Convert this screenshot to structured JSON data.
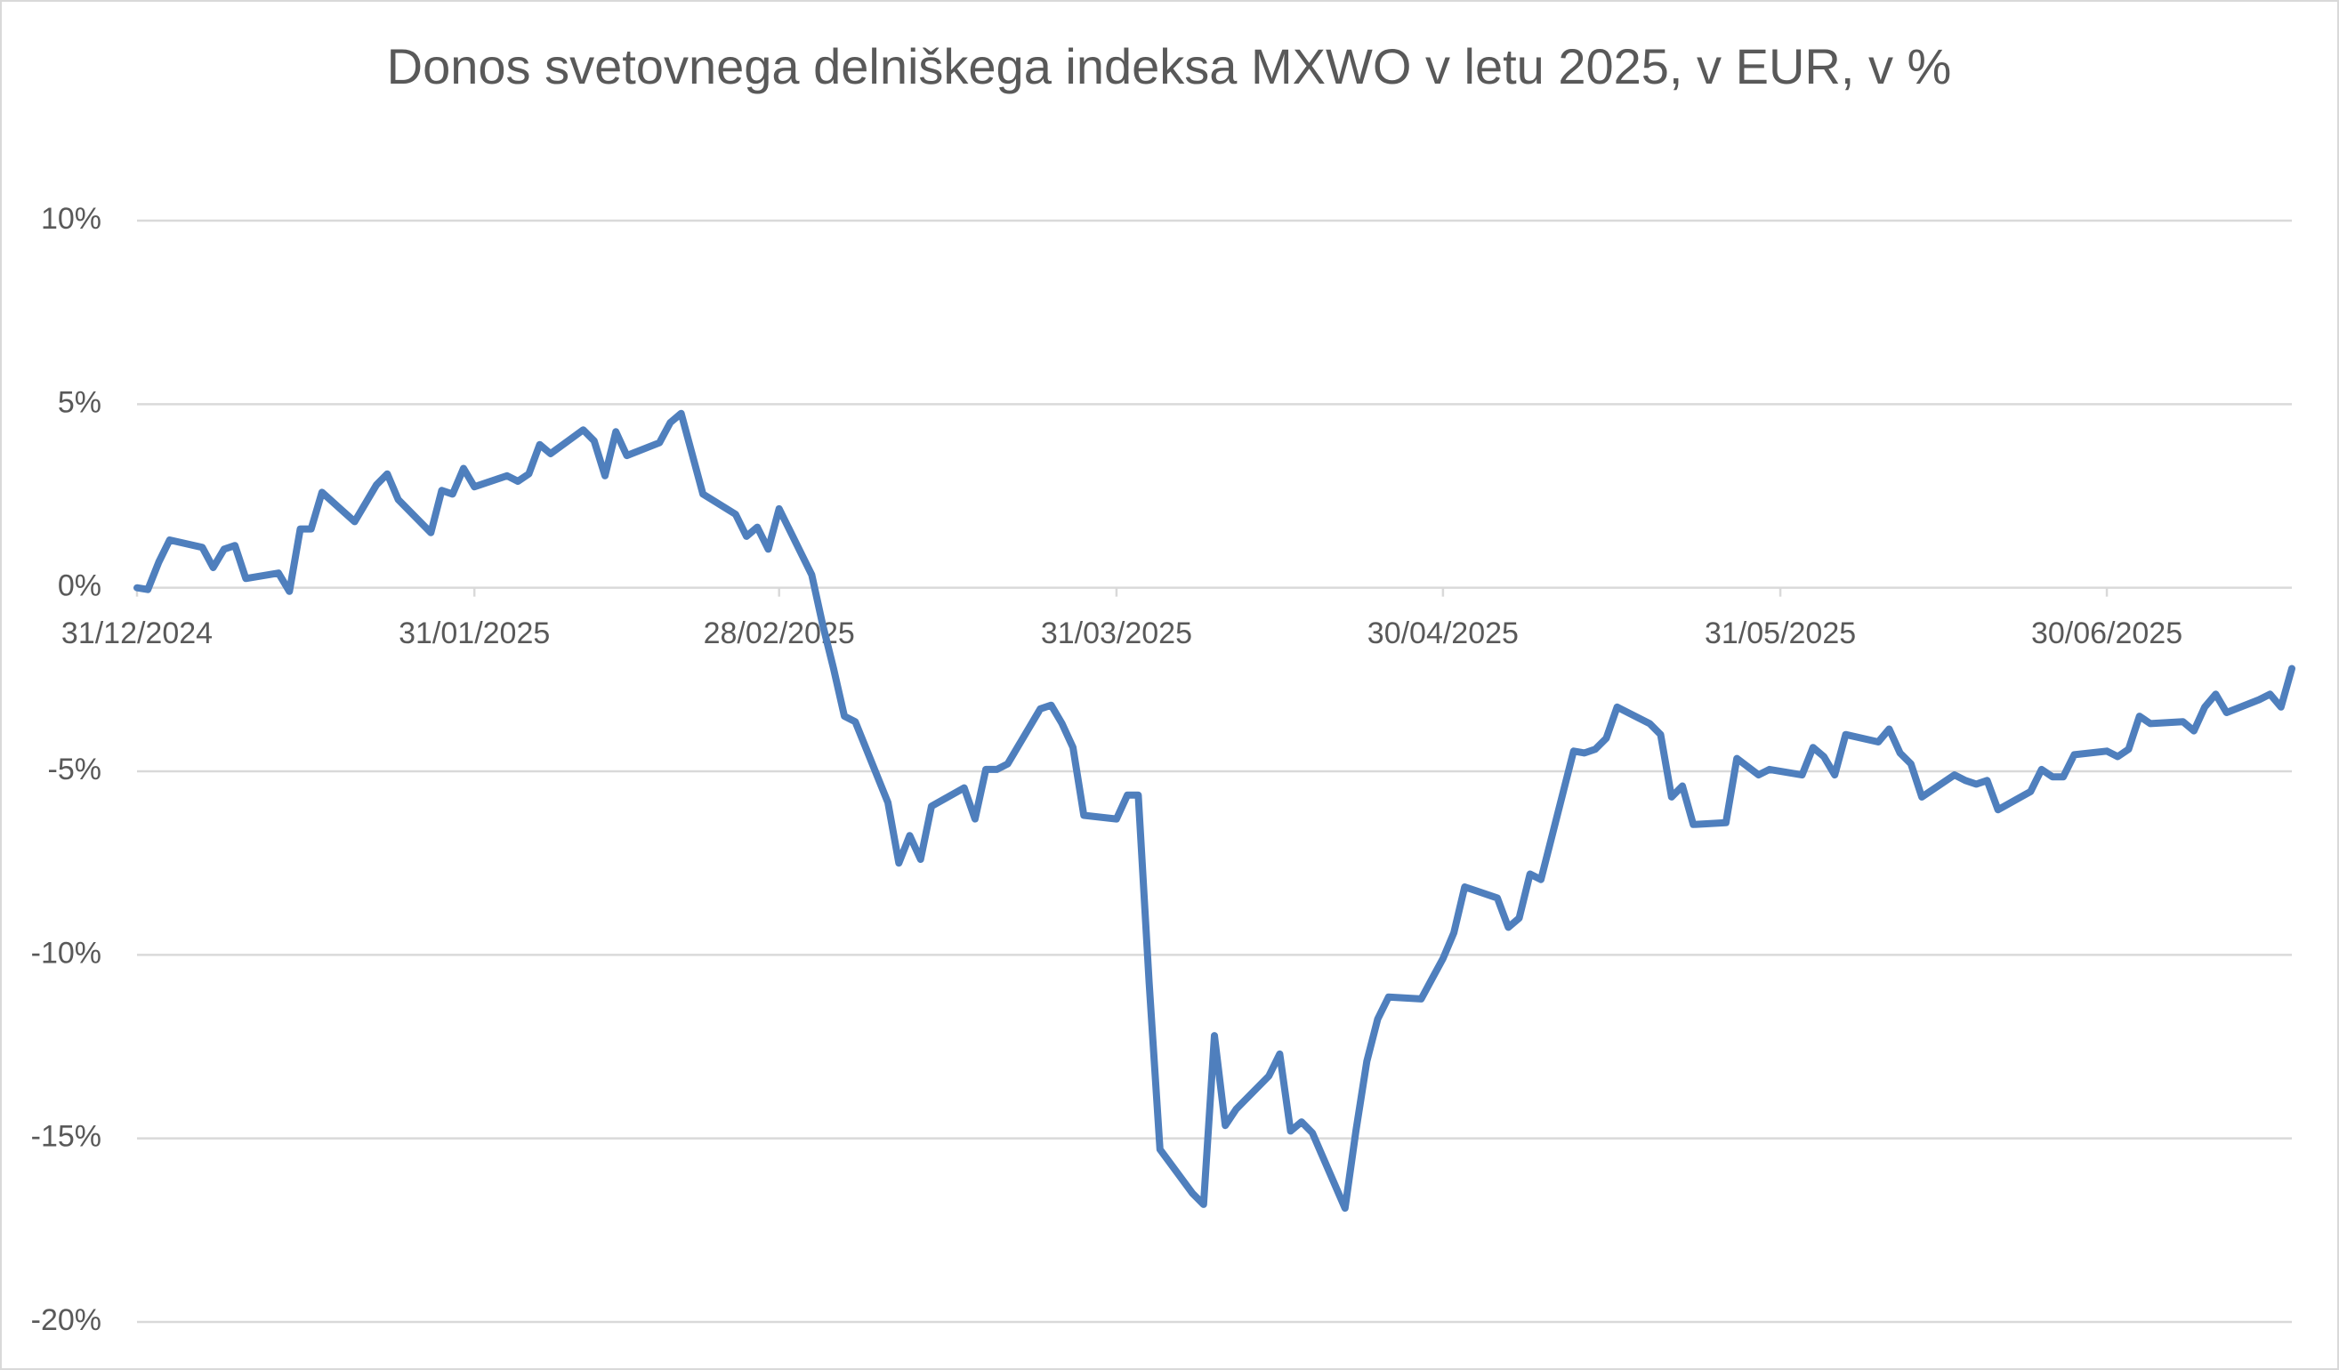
{
  "chart_data": {
    "type": "line",
    "title": "Donos svetovnega delniškega indeksa MXWO v letu 2025, v EUR, v %",
    "x": [
      "2024-12-31",
      "2025-01-01",
      "2025-01-02",
      "2025-01-03",
      "2025-01-06",
      "2025-01-07",
      "2025-01-08",
      "2025-01-09",
      "2025-01-10",
      "2025-01-13",
      "2025-01-14",
      "2025-01-15",
      "2025-01-16",
      "2025-01-17",
      "2025-01-20",
      "2025-01-22",
      "2025-01-23",
      "2025-01-24",
      "2025-01-27",
      "2025-01-28",
      "2025-01-29",
      "2025-01-30",
      "2025-01-31",
      "2025-02-03",
      "2025-02-04",
      "2025-02-05",
      "2025-02-06",
      "2025-02-07",
      "2025-02-10",
      "2025-02-11",
      "2025-02-12",
      "2025-02-13",
      "2025-02-14",
      "2025-02-17",
      "2025-02-18",
      "2025-02-19",
      "2025-02-21",
      "2025-02-24",
      "2025-02-25",
      "2025-02-26",
      "2025-02-27",
      "2025-02-28",
      "2025-03-03",
      "2025-03-04",
      "2025-03-05",
      "2025-03-06",
      "2025-03-07",
      "2025-03-10",
      "2025-03-11",
      "2025-03-12",
      "2025-03-13",
      "2025-03-14",
      "2025-03-17",
      "2025-03-18",
      "2025-03-19",
      "2025-03-20",
      "2025-03-21",
      "2025-03-24",
      "2025-03-25",
      "2025-03-26",
      "2025-03-27",
      "2025-03-28",
      "2025-03-31",
      "2025-04-01",
      "2025-04-02",
      "2025-04-03",
      "2025-04-04",
      "2025-04-07",
      "2025-04-08",
      "2025-04-09",
      "2025-04-10",
      "2025-04-11",
      "2025-04-14",
      "2025-04-15",
      "2025-04-16",
      "2025-04-17",
      "2025-04-18",
      "2025-04-21",
      "2025-04-22",
      "2025-04-23",
      "2025-04-24",
      "2025-04-25",
      "2025-04-28",
      "2025-04-29",
      "2025-04-30",
      "2025-05-01",
      "2025-05-02",
      "2025-05-05",
      "2025-05-06",
      "2025-05-07",
      "2025-05-08",
      "2025-05-09",
      "2025-05-12",
      "2025-05-13",
      "2025-05-14",
      "2025-05-15",
      "2025-05-16",
      "2025-05-19",
      "2025-05-20",
      "2025-05-21",
      "2025-05-22",
      "2025-05-23",
      "2025-05-26",
      "2025-05-27",
      "2025-05-29",
      "2025-05-30",
      "2025-06-02",
      "2025-06-03",
      "2025-06-04",
      "2025-06-05",
      "2025-06-06",
      "2025-06-09",
      "2025-06-10",
      "2025-06-11",
      "2025-06-12",
      "2025-06-13",
      "2025-06-16",
      "2025-06-17",
      "2025-06-18",
      "2025-06-19",
      "2025-06-20",
      "2025-06-23",
      "2025-06-24",
      "2025-06-25",
      "2025-06-26",
      "2025-06-27",
      "2025-06-30",
      "2025-07-01",
      "2025-07-02",
      "2025-07-03",
      "2025-07-04",
      "2025-07-07",
      "2025-07-08",
      "2025-07-09",
      "2025-07-10",
      "2025-07-11",
      "2025-07-14",
      "2025-07-15",
      "2025-07-16",
      "2025-07-17"
    ],
    "values": [
      0,
      -0.05,
      0.7,
      1.3,
      1.1,
      0.55,
      1.05,
      1.15,
      0.25,
      0.4,
      -0.1,
      1.6,
      1.6,
      2.6,
      1.8,
      2.8,
      3.1,
      2.4,
      1.5,
      2.65,
      2.55,
      3.25,
      2.75,
      3.05,
      2.9,
      3.1,
      3.9,
      3.65,
      4.3,
      4.0,
      3.05,
      4.25,
      3.6,
      3.95,
      4.5,
      4.75,
      2.55,
      2.0,
      1.4,
      1.65,
      1.05,
      2.15,
      0.35,
      -1.0,
      -2.2,
      -3.5,
      -3.65,
      -5.85,
      -7.5,
      -6.75,
      -7.4,
      -5.95,
      -5.45,
      -6.3,
      -4.95,
      -4.95,
      -4.8,
      -3.3,
      -3.2,
      -3.7,
      -4.35,
      -6.2,
      -6.3,
      -5.65,
      -5.65,
      -10.75,
      -15.3,
      -16.5,
      -16.8,
      -12.2,
      -14.65,
      -14.2,
      -13.3,
      -12.7,
      -14.8,
      -14.55,
      -14.85,
      -16.9,
      -14.8,
      -12.9,
      -11.75,
      -11.15,
      -11.2,
      -10.65,
      -10.1,
      -9.4,
      -8.15,
      -8.45,
      -9.25,
      -9.0,
      -7.8,
      -7.95,
      -4.45,
      -4.5,
      -4.4,
      -4.1,
      -3.25,
      -3.7,
      -4.0,
      -5.7,
      -5.4,
      -6.45,
      -6.4,
      -4.65,
      -5.1,
      -4.95,
      -5.1,
      -4.35,
      -4.6,
      -5.1,
      -4.0,
      -4.2,
      -3.85,
      -4.5,
      -4.8,
      -5.7,
      -5.1,
      -5.25,
      -5.35,
      -5.25,
      -6.05,
      -5.55,
      -4.95,
      -5.15,
      -5.15,
      -4.55,
      -4.45,
      -4.6,
      -4.4,
      -3.5,
      -3.7,
      -3.65,
      -3.9,
      -3.25,
      -2.9,
      -3.4,
      -3.05,
      -2.9,
      -3.25,
      -2.2
    ],
    "color": "#4f7fbd",
    "xlim": [
      "2024-12-31",
      "2025-07-17"
    ],
    "xticks": [
      {
        "value": "2024-12-31",
        "label": "31/12/2024"
      },
      {
        "value": "2025-01-31",
        "label": "31/01/2025"
      },
      {
        "value": "2025-02-28",
        "label": "28/02/2025"
      },
      {
        "value": "2025-03-31",
        "label": "31/03/2025"
      },
      {
        "value": "2025-04-30",
        "label": "30/04/2025"
      },
      {
        "value": "2025-05-31",
        "label": "31/05/2025"
      },
      {
        "value": "2025-06-30",
        "label": "30/06/2025"
      }
    ],
    "ylim": [
      -20,
      10
    ],
    "yticks": [
      {
        "value": -20,
        "label": "-20%"
      },
      {
        "value": -15,
        "label": "-15%"
      },
      {
        "value": -10,
        "label": "-10%"
      },
      {
        "value": -5,
        "label": "-5%"
      },
      {
        "value": 0,
        "label": "0%"
      },
      {
        "value": 5,
        "label": "5%"
      },
      {
        "value": 10,
        "label": "10%"
      }
    ],
    "grid": true
  }
}
